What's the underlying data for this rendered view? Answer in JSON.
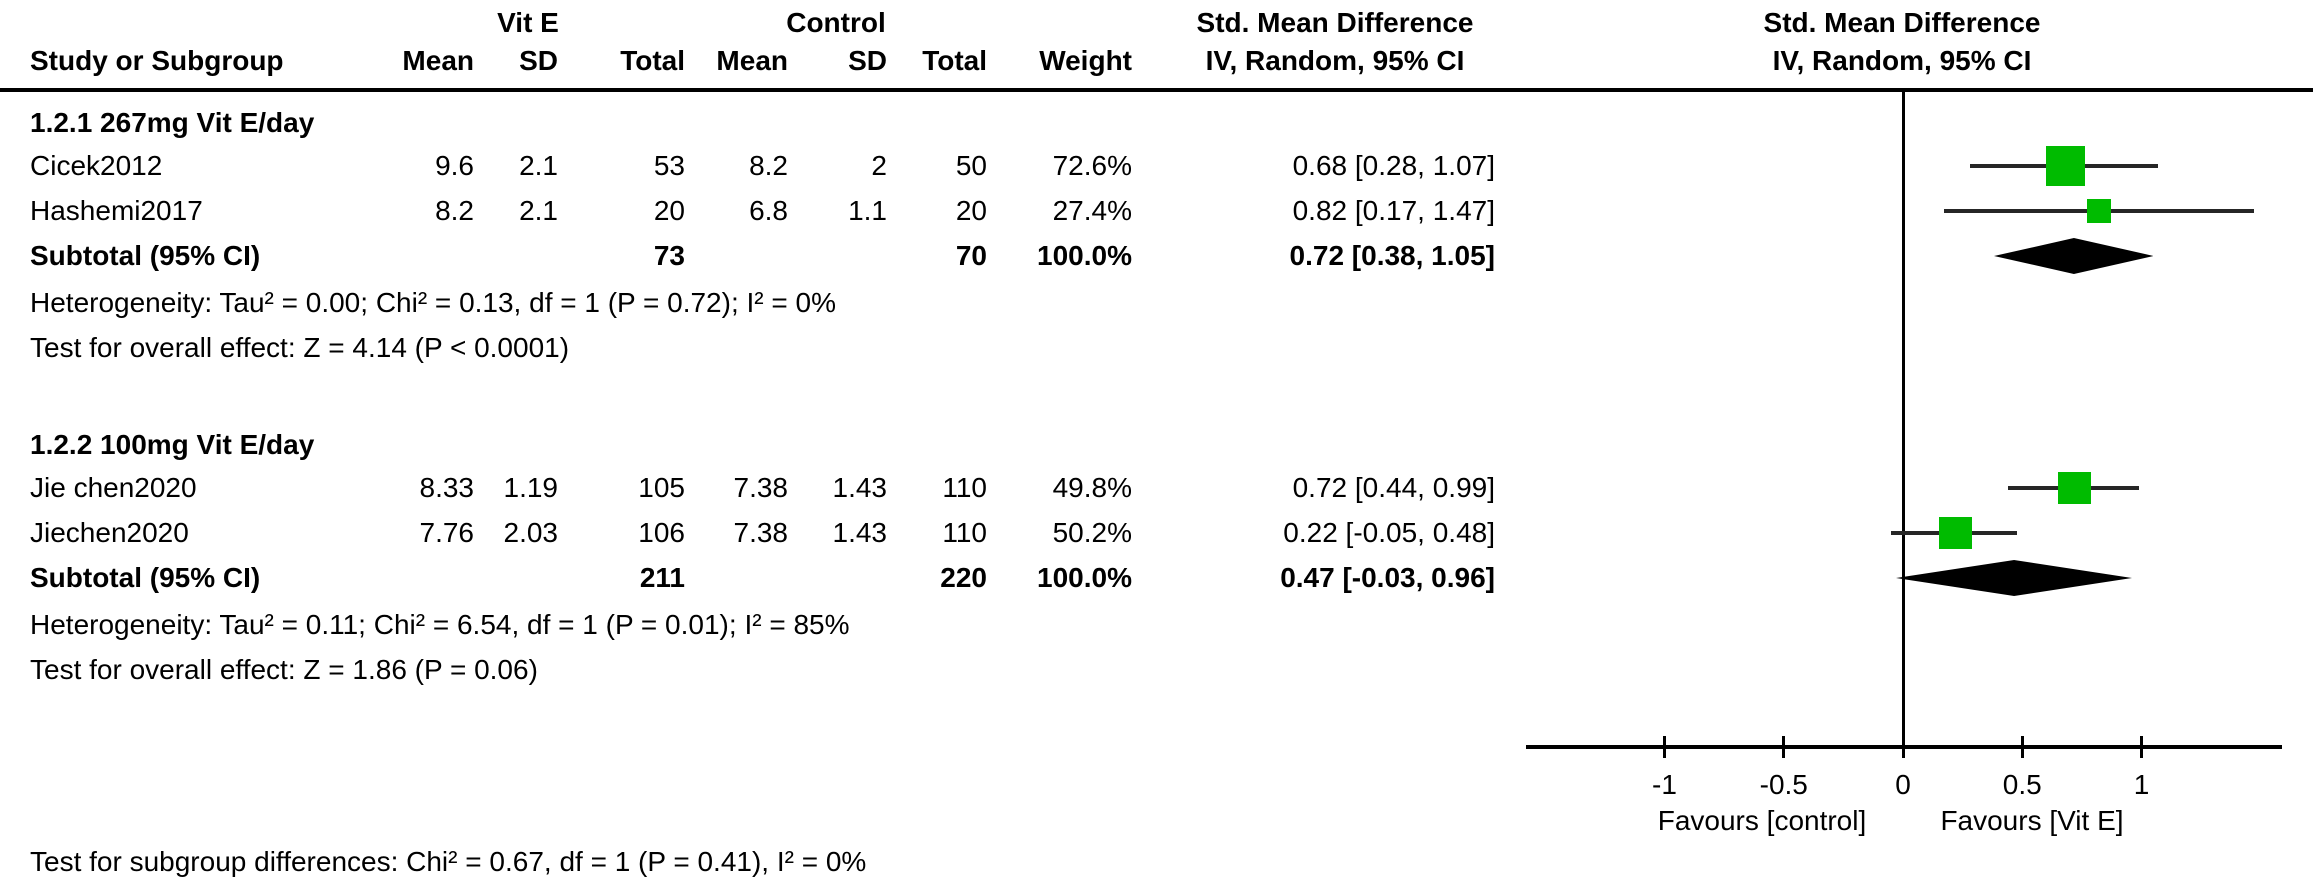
{
  "colors": {
    "marker_green": "#00BB00",
    "diamond_black": "#000000",
    "line_black": "#000000",
    "ci_line": "#262626"
  },
  "header": {
    "group1": "Vit E",
    "group2": "Control",
    "stat_col_title": "Std. Mean Difference",
    "plot_col_title": "Std. Mean Difference",
    "stat_col_sub": "IV, Random, 95% CI",
    "plot_col_sub": "IV, Random, 95% CI",
    "study_col": "Study or Subgroup",
    "cols": [
      "Mean",
      "SD",
      "Total",
      "Mean",
      "SD",
      "Total",
      "Weight"
    ]
  },
  "chart_data": {
    "type": "forest",
    "effect_measure": "Std. Mean Difference",
    "model": "IV, Random, 95% CI",
    "x_axis": {
      "ticks": [
        -1,
        -0.5,
        0,
        0.5,
        1
      ],
      "tick_labels": [
        "-1",
        "-0.5",
        "0",
        "0.5",
        "1"
      ],
      "range": [
        -1.58,
        1.59
      ],
      "left_label": "Favours [control]",
      "right_label": "Favours [Vit E]"
    },
    "subgroups": [
      {
        "title": "1.2.1 267mg Vit E/day",
        "studies": [
          {
            "name": "Cicek2012",
            "mean1": "9.6",
            "sd1": "2.1",
            "n1": "53",
            "mean2": "8.2",
            "sd2": "2",
            "n2": "50",
            "weight": "72.6%",
            "weight_val": 72.6,
            "ci_label": "0.68 [0.28, 1.07]",
            "est": 0.68,
            "lo": 0.28,
            "hi": 1.07
          },
          {
            "name": "Hashemi2017",
            "mean1": "8.2",
            "sd1": "2.1",
            "n1": "20",
            "mean2": "6.8",
            "sd2": "1.1",
            "n2": "20",
            "weight": "27.4%",
            "weight_val": 27.4,
            "ci_label": "0.82 [0.17, 1.47]",
            "est": 0.82,
            "lo": 0.17,
            "hi": 1.47
          }
        ],
        "subtotal": {
          "label": "Subtotal (95% CI)",
          "n1": "73",
          "n2": "70",
          "weight": "100.0%",
          "ci_label": "0.72 [0.38, 1.05]",
          "est": 0.72,
          "lo": 0.38,
          "hi": 1.05
        },
        "heterogeneity": "Heterogeneity: Tau² = 0.00; Chi² = 0.13, df = 1 (P = 0.72); I² = 0%",
        "overall_effect": "Test for overall effect: Z = 4.14 (P < 0.0001)"
      },
      {
        "title": "1.2.2 100mg Vit E/day",
        "studies": [
          {
            "name": "Jie chen2020",
            "mean1": "8.33",
            "sd1": "1.19",
            "n1": "105",
            "mean2": "7.38",
            "sd2": "1.43",
            "n2": "110",
            "weight": "49.8%",
            "weight_val": 49.8,
            "ci_label": "0.72 [0.44, 0.99]",
            "est": 0.72,
            "lo": 0.44,
            "hi": 0.99
          },
          {
            "name": "Jiechen2020",
            "mean1": "7.76",
            "sd1": "2.03",
            "n1": "106",
            "mean2": "7.38",
            "sd2": "1.43",
            "n2": "110",
            "weight": "50.2%",
            "weight_val": 50.2,
            "ci_label": "0.22 [-0.05, 0.48]",
            "est": 0.22,
            "lo": -0.05,
            "hi": 0.48
          }
        ],
        "subtotal": {
          "label": "Subtotal (95% CI)",
          "n1": "211",
          "n2": "220",
          "weight": "100.0%",
          "ci_label": "0.47 [-0.03, 0.96]",
          "est": 0.47,
          "lo": -0.03,
          "hi": 0.96
        },
        "heterogeneity": "Heterogeneity: Tau² = 0.11; Chi² = 6.54, df = 1 (P = 0.01); I² = 85%",
        "overall_effect": "Test for overall effect: Z = 1.86 (P = 0.06)"
      }
    ],
    "footer": "Test for subgroup differences: Chi² = 0.67, df = 1 (P = 0.41), I² = 0%"
  }
}
